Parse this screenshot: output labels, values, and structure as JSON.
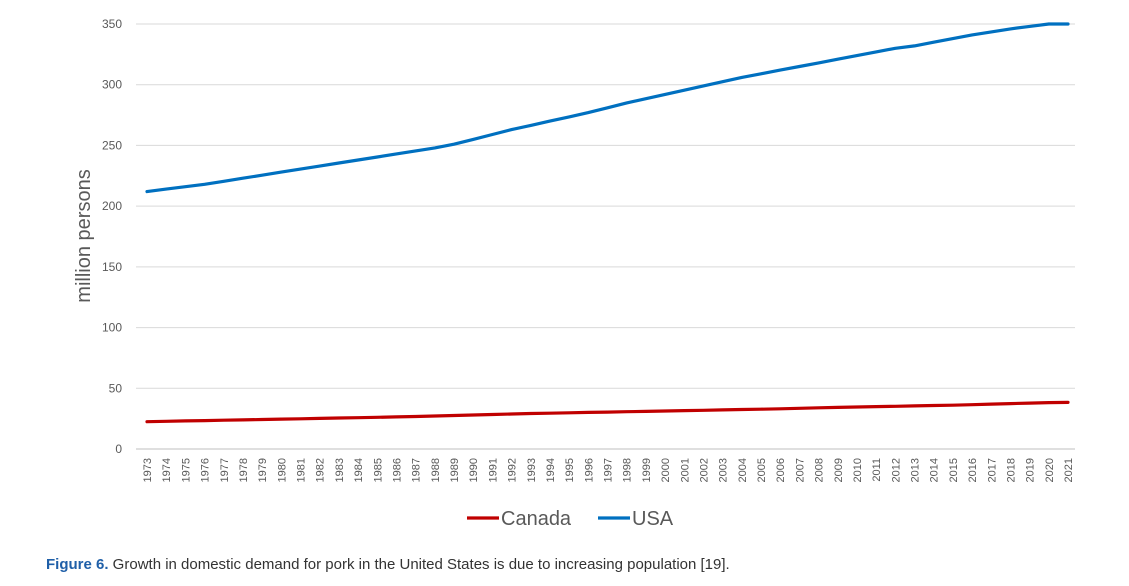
{
  "chart_data": {
    "type": "line",
    "title": "",
    "xlabel": "",
    "ylabel": "million persons",
    "ylim": [
      0,
      350
    ],
    "yticks": [
      0,
      50,
      100,
      150,
      200,
      250,
      300,
      350
    ],
    "grid": true,
    "legend_position": "bottom",
    "x": [
      "1973",
      "1974",
      "1975",
      "1976",
      "1977",
      "1978",
      "1979",
      "1980",
      "1981",
      "1982",
      "1983",
      "1984",
      "1985",
      "1986",
      "1987",
      "1988",
      "1989",
      "1990",
      "1991",
      "1992",
      "1993",
      "1994",
      "1995",
      "1996",
      "1997",
      "1998",
      "1999",
      "2000",
      "2001",
      "2002",
      "2003",
      "2004",
      "2005",
      "2006",
      "2007",
      "2008",
      "2009",
      "2010",
      "2011",
      "2012",
      "2013",
      "2014",
      "2015",
      "2016",
      "2017",
      "2018",
      "2019",
      "2020",
      "2021"
    ],
    "series": [
      {
        "name": "Canada",
        "color": "#c00000",
        "values": [
          22.5,
          22.8,
          23.1,
          23.4,
          23.7,
          24.0,
          24.3,
          24.6,
          24.9,
          25.2,
          25.5,
          25.8,
          26.1,
          26.4,
          26.8,
          27.2,
          27.6,
          28.0,
          28.4,
          28.8,
          29.2,
          29.5,
          29.8,
          30.1,
          30.4,
          30.7,
          31.0,
          31.3,
          31.6,
          31.9,
          32.2,
          32.5,
          32.8,
          33.1,
          33.5,
          33.9,
          34.3,
          34.6,
          34.9,
          35.2,
          35.5,
          35.8,
          36.1,
          36.5,
          37.0,
          37.4,
          37.8,
          38.2,
          38.4
        ]
      },
      {
        "name": "USA",
        "color": "#0070c0",
        "values": [
          212,
          214,
          216,
          218,
          220.5,
          223,
          225.5,
          228,
          230.5,
          233,
          235.5,
          238,
          240.5,
          243,
          245.5,
          248,
          251,
          255,
          259,
          263,
          266.5,
          270,
          273.5,
          277,
          281,
          285,
          288.5,
          292,
          295.5,
          299,
          302.5,
          306,
          309,
          312,
          315,
          318,
          321,
          324,
          327,
          330,
          332,
          335,
          338,
          341,
          343.5,
          346,
          348,
          350,
          350
        ]
      }
    ]
  },
  "caption": {
    "lead": "Figure 6.",
    "text": " Growth in domestic demand for pork in the United States is due to increasing population [19]."
  }
}
